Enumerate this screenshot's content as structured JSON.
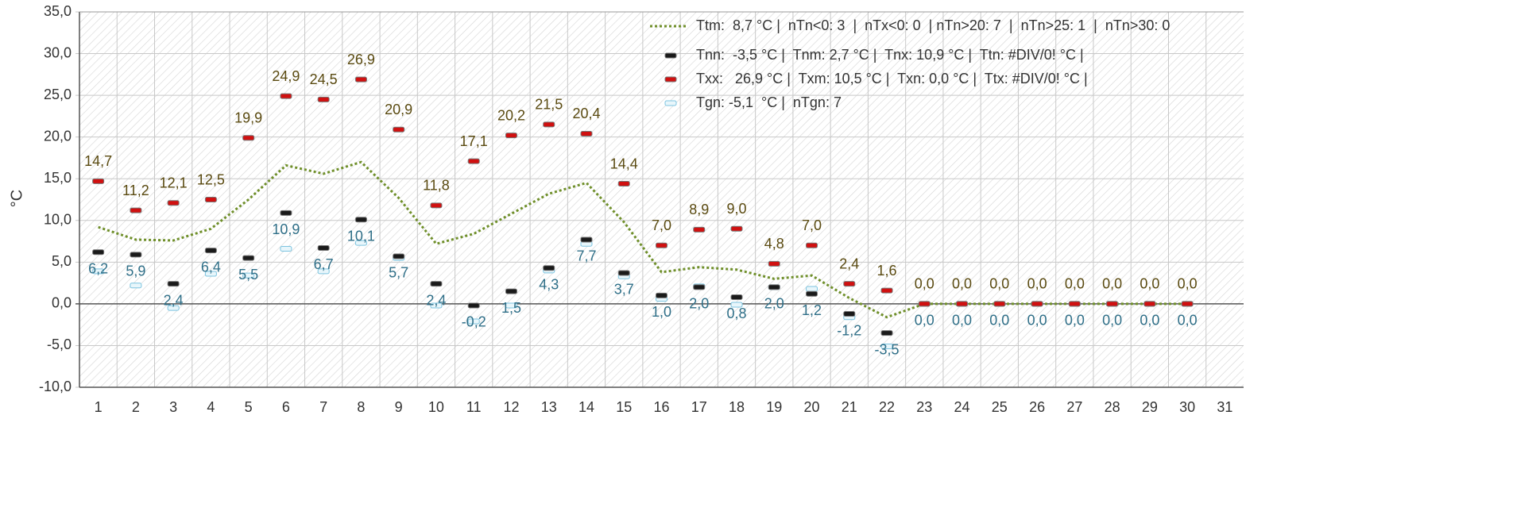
{
  "chart_data": {
    "type": "line",
    "y_label": "°C",
    "categories": [
      "1",
      "2",
      "3",
      "4",
      "5",
      "6",
      "7",
      "8",
      "9",
      "10",
      "11",
      "12",
      "13",
      "14",
      "15",
      "16",
      "17",
      "18",
      "19",
      "20",
      "21",
      "22",
      "23",
      "24",
      "25",
      "26",
      "27",
      "28",
      "29",
      "30",
      "31"
    ],
    "ylim": [
      -10,
      35
    ],
    "yticks": [
      {
        "value": -10,
        "label": "-10,0"
      },
      {
        "value": -5,
        "label": "-5,0"
      },
      {
        "value": 0,
        "label": "0,0"
      },
      {
        "value": 5,
        "label": "5,0"
      },
      {
        "value": 10,
        "label": "10,0"
      },
      {
        "value": 15,
        "label": "15,0"
      },
      {
        "value": 20,
        "label": "20,0"
      },
      {
        "value": 25,
        "label": "25,0"
      },
      {
        "value": 30,
        "label": "30,0"
      },
      {
        "value": 35,
        "label": "35,0"
      }
    ],
    "grid": true,
    "legend": "top-right",
    "series": [
      {
        "name": "Ttm:  8,7 °C |  nTn<0: 3  |  nTx<0: 0  | nTn>20: 7  |  nTn>25: 1  |  nTn>30: 0",
        "kind": "dotted-line",
        "color": "#6f8f2a",
        "values": [
          9.2,
          7.7,
          7.6,
          9.0,
          12.5,
          16.6,
          15.6,
          17.0,
          12.7,
          7.2,
          8.4,
          10.8,
          13.2,
          14.5,
          9.8,
          3.8,
          4.4,
          4.1,
          3.0,
          3.4,
          0.7,
          -1.6,
          0,
          0,
          0,
          0,
          0,
          0,
          0,
          0,
          null
        ]
      },
      {
        "name": "Tnn:  -3,5 °C |  Tnm: 2,7 °C |  Tnx: 10,9 °C |  Ttn: #DIV/0! °C |",
        "kind": "marker",
        "color": "#1a1a1a",
        "label_color": "#2f6f88",
        "label_side": "below",
        "values": [
          6.2,
          5.9,
          2.4,
          6.4,
          5.5,
          10.9,
          6.7,
          10.1,
          5.7,
          2.4,
          -0.2,
          1.5,
          4.3,
          7.7,
          3.7,
          1.0,
          2.0,
          0.8,
          2.0,
          1.2,
          -1.2,
          -3.5,
          0,
          0,
          0,
          0,
          0,
          0,
          0,
          0,
          null
        ],
        "value_labels": [
          "6,2",
          "5,9",
          "2,4",
          "6,4",
          "5,5",
          "10,9",
          "6,7",
          "10,1",
          "5,7",
          "2,4",
          "-0,2",
          "1,5",
          "4,3",
          "7,7",
          "3,7",
          "1,0",
          "2,0",
          "0,8",
          "2,0",
          "1,2",
          "-1,2",
          "-3,5",
          "0,0",
          "0,0",
          "0,0",
          "0,0",
          "0,0",
          "0,0",
          "0,0",
          "0,0",
          null
        ]
      },
      {
        "name": "Txx:   26,9 °C |  Txm: 10,5 °C |  Txn: 0,0 °C |  Ttx: #DIV/0! °C |",
        "kind": "marker",
        "color": "#d01010",
        "label_color": "#5a4a10",
        "label_side": "above",
        "values": [
          14.7,
          11.2,
          12.1,
          12.5,
          19.9,
          24.9,
          24.5,
          26.9,
          20.9,
          11.8,
          17.1,
          20.2,
          21.5,
          20.4,
          14.4,
          7.0,
          8.9,
          9.0,
          4.8,
          7.0,
          2.4,
          1.6,
          0,
          0,
          0,
          0,
          0,
          0,
          0,
          0,
          null
        ],
        "value_labels": [
          "14,7",
          "11,2",
          "12,1",
          "12,5",
          "19,9",
          "24,9",
          "24,5",
          "26,9",
          "20,9",
          "11,8",
          "17,1",
          "20,2",
          "21,5",
          "20,4",
          "14,4",
          "7,0",
          "8,9",
          "9,0",
          "4,8",
          "7,0",
          "2,4",
          "1,6",
          "0,0",
          "0,0",
          "0,0",
          "0,0",
          "0,0",
          "0,0",
          "0,0",
          "0,0",
          null
        ]
      },
      {
        "name": "Tgn: -5,1  °C |  nTgn: 7",
        "kind": "marker",
        "color": "#e8f6fb",
        "stroke": "#7cc4e0",
        "values": [
          3.9,
          2.2,
          -0.5,
          3.6,
          3.4,
          6.6,
          3.9,
          7.3,
          5.5,
          -0.2,
          -2.1,
          -0.2,
          4.0,
          7.2,
          3.3,
          0.6,
          2.1,
          -0.1,
          2.0,
          1.8,
          -1.6,
          -5.1,
          null,
          null,
          null,
          null,
          null,
          null,
          null,
          null,
          null
        ]
      }
    ]
  }
}
